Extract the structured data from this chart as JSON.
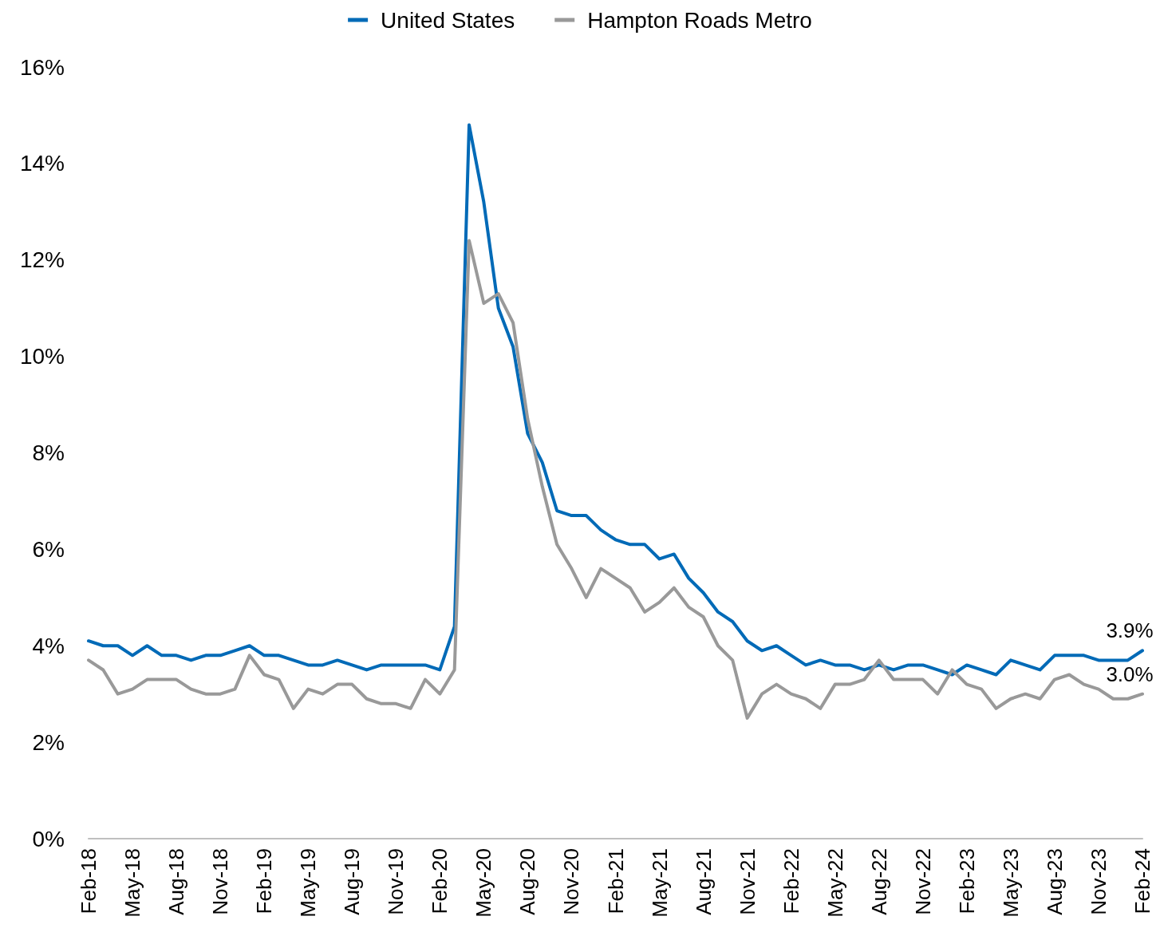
{
  "chart_data": {
    "type": "line",
    "categories": [
      "Feb-18",
      null,
      null,
      "May-18",
      null,
      null,
      "Aug-18",
      null,
      null,
      "Nov-18",
      null,
      null,
      "Feb-19",
      null,
      null,
      "May-19",
      null,
      null,
      "Aug-19",
      null,
      null,
      "Nov-19",
      null,
      null,
      "Feb-20",
      null,
      null,
      "May-20",
      null,
      null,
      "Aug-20",
      null,
      null,
      "Nov-20",
      null,
      null,
      "Feb-21",
      null,
      null,
      "May-21",
      null,
      null,
      "Aug-21",
      null,
      null,
      "Nov-21",
      null,
      null,
      "Feb-22",
      null,
      null,
      "May-22",
      null,
      null,
      "Aug-22",
      null,
      null,
      "Nov-22",
      null,
      null,
      "Feb-23",
      null,
      null,
      "May-23",
      null,
      null,
      "Aug-23",
      null,
      null,
      "Nov-23",
      null,
      null,
      "Feb-24"
    ],
    "series": [
      {
        "name": "United States",
        "color": "#006ab7",
        "values": [
          4.1,
          4.0,
          4.0,
          3.8,
          4.0,
          3.8,
          3.8,
          3.7,
          3.8,
          3.8,
          3.9,
          4.0,
          3.8,
          3.8,
          3.7,
          3.6,
          3.6,
          3.7,
          3.6,
          3.5,
          3.6,
          3.6,
          3.6,
          3.6,
          3.5,
          4.4,
          14.8,
          13.2,
          11.0,
          10.2,
          8.4,
          7.8,
          6.8,
          6.7,
          6.7,
          6.4,
          6.2,
          6.1,
          6.1,
          5.8,
          5.9,
          5.4,
          5.1,
          4.7,
          4.5,
          4.1,
          3.9,
          4.0,
          3.8,
          3.6,
          3.7,
          3.6,
          3.6,
          3.5,
          3.6,
          3.5,
          3.6,
          3.6,
          3.5,
          3.4,
          3.6,
          3.5,
          3.4,
          3.7,
          3.6,
          3.5,
          3.8,
          3.8,
          3.8,
          3.7,
          3.7,
          3.7,
          3.9
        ],
        "value_labels": [
          null,
          null,
          null,
          null,
          null,
          null,
          null,
          null,
          null,
          null,
          null,
          null,
          null,
          null,
          null,
          null,
          null,
          null,
          null,
          null,
          null,
          null,
          null,
          null,
          null,
          null,
          null,
          null,
          null,
          null,
          null,
          null,
          null,
          null,
          null,
          null,
          null,
          null,
          null,
          null,
          null,
          null,
          null,
          null,
          null,
          null,
          null,
          null,
          null,
          null,
          null,
          null,
          null,
          null,
          null,
          null,
          null,
          null,
          null,
          null,
          null,
          null,
          null,
          null,
          null,
          null,
          null,
          null,
          null,
          null,
          null,
          null,
          "3.9%"
        ]
      },
      {
        "name": "Hampton Roads Metro",
        "color": "#999999",
        "values": [
          3.7,
          3.5,
          3.0,
          3.1,
          3.3,
          3.3,
          3.3,
          3.1,
          3.0,
          3.0,
          3.1,
          3.8,
          3.4,
          3.3,
          2.7,
          3.1,
          3.0,
          3.2,
          3.2,
          2.9,
          2.8,
          2.8,
          2.7,
          3.3,
          3.0,
          3.5,
          12.4,
          11.1,
          11.3,
          10.7,
          8.7,
          7.3,
          6.1,
          5.6,
          5.0,
          5.6,
          5.4,
          5.2,
          4.7,
          4.9,
          5.2,
          4.8,
          4.6,
          4.0,
          3.7,
          2.5,
          3.0,
          3.2,
          3.0,
          2.9,
          2.7,
          3.2,
          3.2,
          3.3,
          3.7,
          3.3,
          3.3,
          3.3,
          3.0,
          3.5,
          3.2,
          3.1,
          2.7,
          2.9,
          3.0,
          2.9,
          3.3,
          3.4,
          3.2,
          3.1,
          2.9,
          2.9,
          3.0
        ],
        "value_labels": [
          null,
          null,
          null,
          null,
          null,
          null,
          null,
          null,
          null,
          null,
          null,
          null,
          null,
          null,
          null,
          null,
          null,
          null,
          null,
          null,
          null,
          null,
          null,
          null,
          null,
          null,
          null,
          null,
          null,
          null,
          null,
          null,
          null,
          null,
          null,
          null,
          null,
          null,
          null,
          null,
          null,
          null,
          null,
          null,
          null,
          null,
          null,
          null,
          null,
          null,
          null,
          null,
          null,
          null,
          null,
          null,
          null,
          null,
          null,
          null,
          null,
          null,
          null,
          null,
          null,
          null,
          null,
          null,
          null,
          null,
          null,
          null,
          "3.0%"
        ]
      }
    ],
    "ylim": [
      0,
      16
    ],
    "yticks": [
      {
        "value": 0,
        "label": "0%"
      },
      {
        "value": 2,
        "label": "2%"
      },
      {
        "value": 4,
        "label": "4%"
      },
      {
        "value": 6,
        "label": "6%"
      },
      {
        "value": 8,
        "label": "8%"
      },
      {
        "value": 10,
        "label": "10%"
      },
      {
        "value": 12,
        "label": "12%"
      },
      {
        "value": 14,
        "label": "14%"
      },
      {
        "value": 16,
        "label": "16%"
      }
    ],
    "grid": false,
    "legend": "top",
    "marker": "none",
    "line_style": "solid"
  }
}
